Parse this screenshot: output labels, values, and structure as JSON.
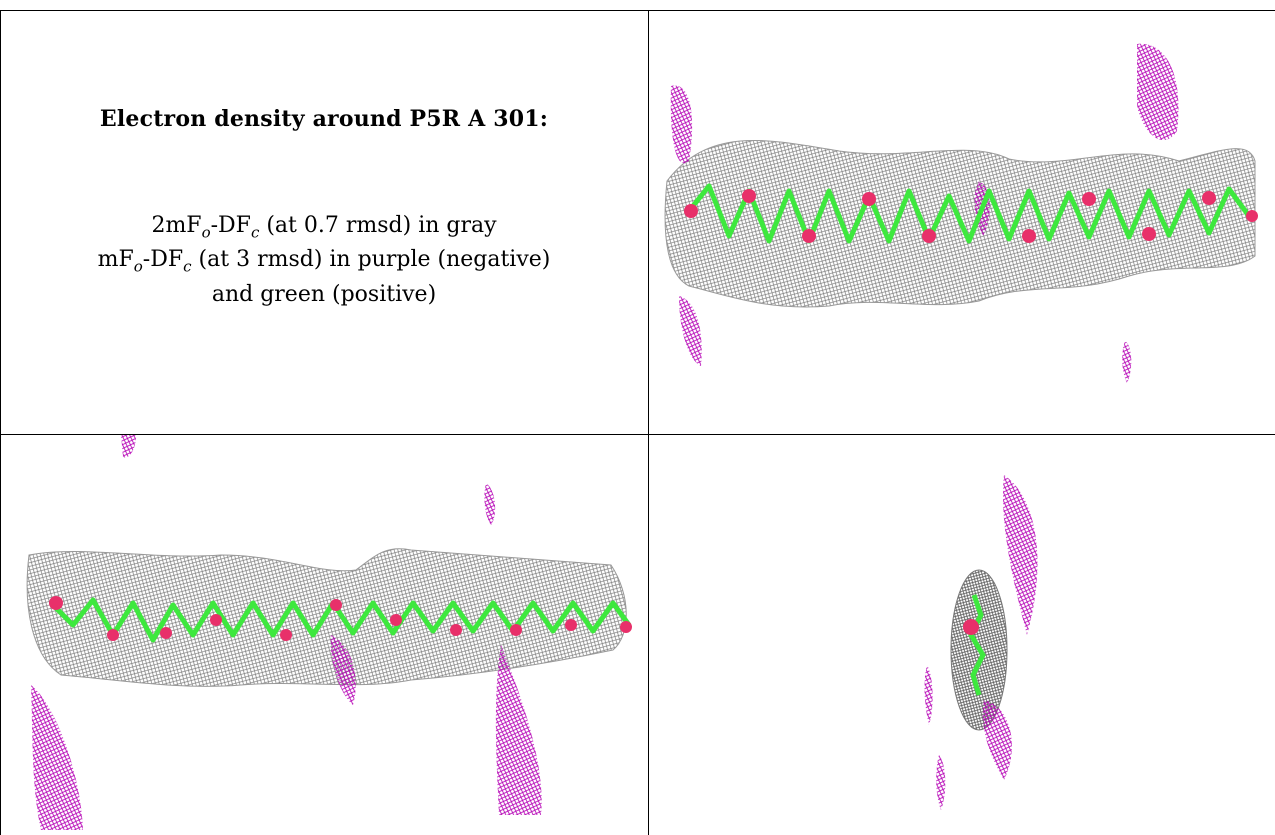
{
  "caption": {
    "title": "Electron density around P5R A 301:",
    "line1_a": "2mF",
    "line1_sub_o": "o",
    "line1_b": "-DF",
    "line1_sub_c": "c",
    "line1_c": " (at 0.7 rmsd) in gray",
    "line2_a": "mF",
    "line2_sub_o": "o",
    "line2_b": "-DF",
    "line2_sub_c": "c",
    "line2_c": " (at 3 rmsd) in purple (negative)",
    "line3": "and green (positive)"
  },
  "colors": {
    "density_gray": "#8a8a8a",
    "difference_negative": "#b400b4",
    "difference_positive": "#3ee83e",
    "oxygen": "#e8306a",
    "grid_line": "#000000"
  },
  "panels": [
    {
      "name": "view-top-right",
      "view": "side"
    },
    {
      "name": "view-bottom-left",
      "view": "side"
    },
    {
      "name": "view-bottom-right",
      "view": "end-on"
    }
  ]
}
